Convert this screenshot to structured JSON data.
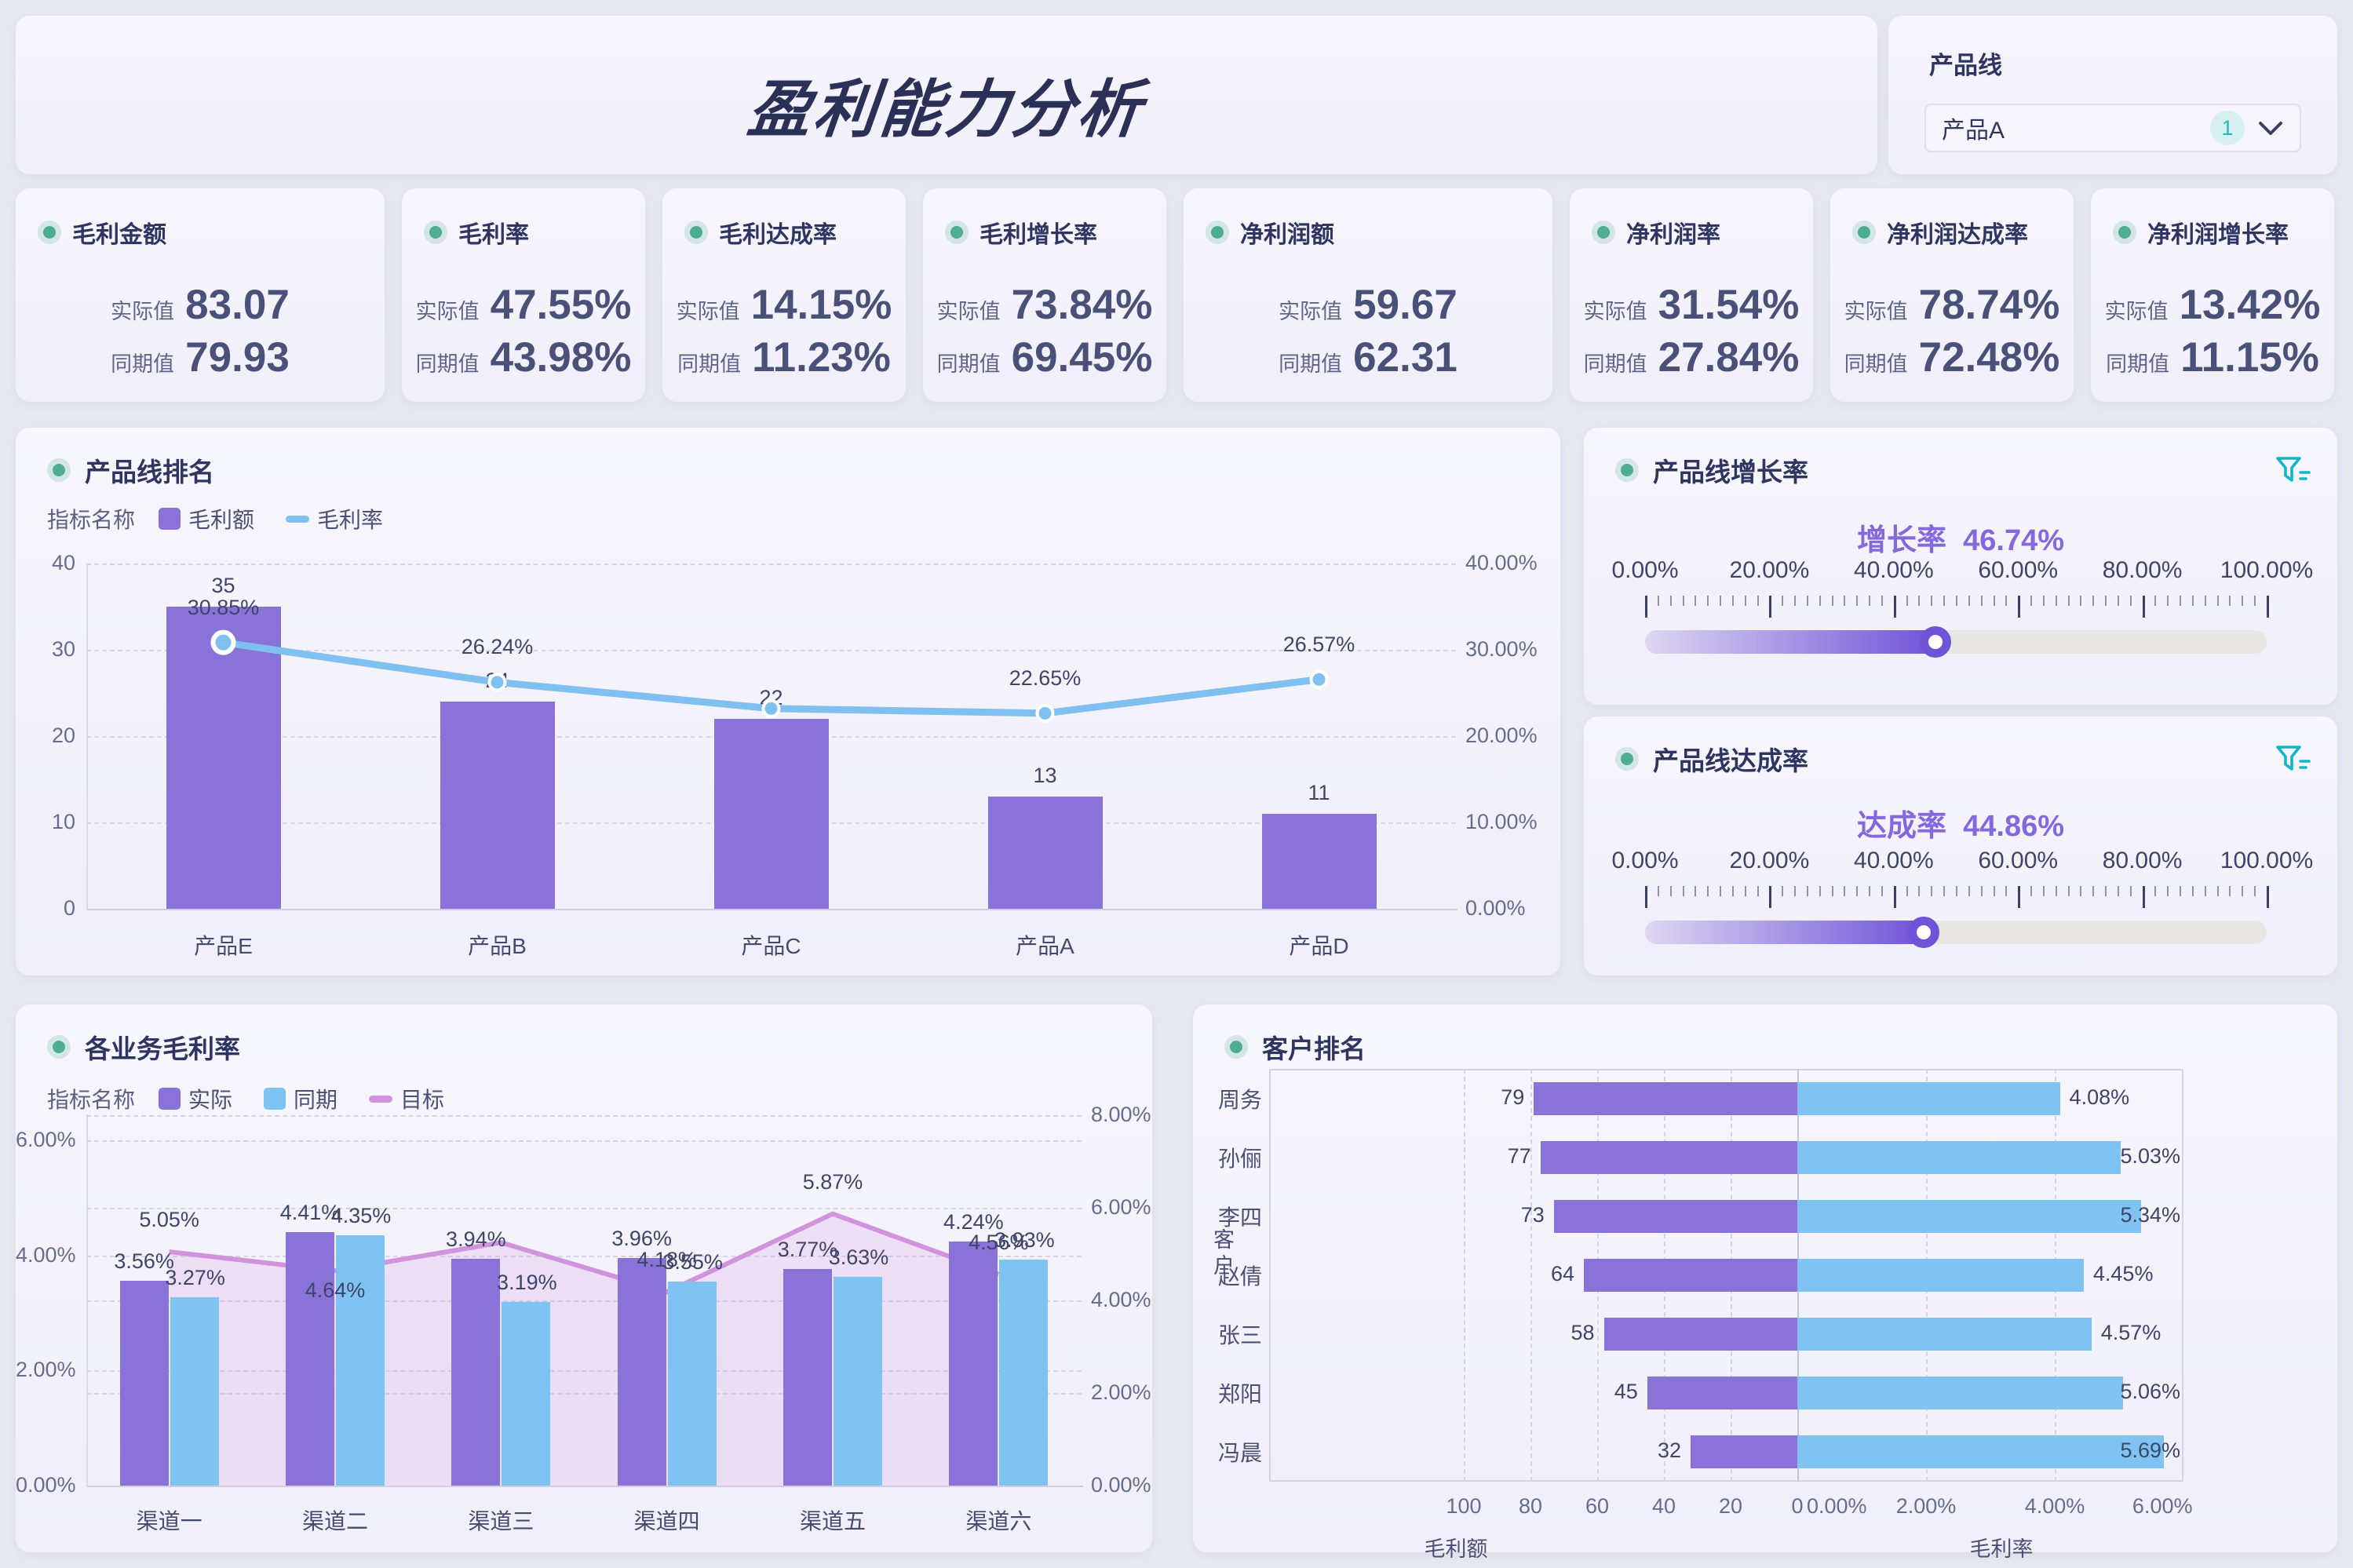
{
  "header": {
    "title": "盈利能力分析",
    "selector_label": "产品线",
    "selector_value": "产品A",
    "selector_badge": "1"
  },
  "kpi_labels": {
    "actual": "实际值",
    "previous": "同期值"
  },
  "kpi_cards": [
    {
      "title": "毛利金额",
      "actual": "83.07",
      "previous": "79.93"
    },
    {
      "title": "毛利率",
      "actual": "47.55%",
      "previous": "43.98%"
    },
    {
      "title": "毛利达成率",
      "actual": "14.15%",
      "previous": "11.23%"
    },
    {
      "title": "毛利增长率",
      "actual": "73.84%",
      "previous": "69.45%"
    },
    {
      "title": "净利润额",
      "actual": "59.67",
      "previous": "62.31"
    },
    {
      "title": "净利润率",
      "actual": "31.54%",
      "previous": "27.84%"
    },
    {
      "title": "净利润达成率",
      "actual": "78.74%",
      "previous": "72.48%"
    },
    {
      "title": "净利润增长率",
      "actual": "13.42%",
      "previous": "11.15%"
    }
  ],
  "sliders": [
    {
      "title": "产品线增长率",
      "label": "增长率",
      "value": "46.74%",
      "percent": 46.74,
      "tick_labels": [
        "0.00%",
        "20.00%",
        "40.00%",
        "60.00%",
        "80.00%",
        "100.00%"
      ]
    },
    {
      "title": "产品线达成率",
      "label": "达成率",
      "value": "44.86%",
      "percent": 44.86,
      "tick_labels": [
        "0.00%",
        "20.00%",
        "40.00%",
        "60.00%",
        "80.00%",
        "100.00%"
      ]
    }
  ],
  "colors": {
    "purple": "#8a73d8",
    "blue": "#7fc3f3",
    "line_blue": "#7fc0f0",
    "pink": "#d193dc",
    "teal": "#13b5c8",
    "navy": "#2e3561",
    "area_pink": "rgba(209,147,220,0.20)"
  },
  "chart_data": [
    {
      "id": "product_ranking",
      "type": "bar",
      "title": "产品线排名",
      "legend_title": "指标名称",
      "legend": [
        {
          "label": "毛利额",
          "type": "bar"
        },
        {
          "label": "毛利率",
          "type": "line"
        }
      ],
      "categories": [
        "产品E",
        "产品B",
        "产品C",
        "产品A",
        "产品D"
      ],
      "bar_values": [
        35,
        24,
        22,
        13,
        11
      ],
      "bar_labels": [
        "35",
        "24",
        "22",
        "13",
        "11"
      ],
      "line_values": [
        30.85,
        26.24,
        23.2,
        22.65,
        26.57
      ],
      "line_labels": [
        "30.85%",
        "26.24%",
        "",
        "22.65%",
        "26.57%"
      ],
      "left_axis": {
        "min": 0,
        "max": 40,
        "ticks": [
          "40",
          "30",
          "20",
          "10",
          "0"
        ]
      },
      "right_axis": {
        "min": 0,
        "max": 40,
        "ticks": [
          "40.00%",
          "30.00%",
          "20.00%",
          "10.00%",
          "0.00%"
        ]
      },
      "grid": true,
      "legend_position": "top-left"
    },
    {
      "id": "business_margin",
      "type": "bar",
      "title": "各业务毛利率",
      "legend_title": "指标名称",
      "legend": [
        {
          "label": "实际",
          "type": "bar"
        },
        {
          "label": "同期",
          "type": "bar"
        },
        {
          "label": "目标",
          "type": "line"
        }
      ],
      "categories": [
        "渠道一",
        "渠道二",
        "渠道三",
        "渠道四",
        "渠道五",
        "渠道六"
      ],
      "series": [
        {
          "name": "实际",
          "values": [
            3.56,
            4.41,
            3.94,
            3.96,
            3.77,
            4.24
          ],
          "labels": [
            "3.56%",
            "4.41%",
            "3.94%",
            "3.96%",
            "3.77%",
            "4.24%"
          ]
        },
        {
          "name": "同期",
          "values": [
            3.27,
            4.35,
            3.19,
            3.55,
            3.63,
            3.93
          ],
          "labels": [
            "3.27%",
            "4.35%",
            "3.19%",
            "3.55%",
            "3.63%",
            "3.93%"
          ]
        },
        {
          "name": "目标",
          "values": [
            5.05,
            4.64,
            5.25,
            4.18,
            5.87,
            4.56
          ],
          "labels": [
            "5.05%",
            "4.64%",
            "",
            "4.18%",
            "5.87%",
            "4.56%"
          ],
          "label_side": [
            "above",
            "below",
            "none",
            "above",
            "above",
            "above"
          ]
        }
      ],
      "left_axis": {
        "min": 0,
        "max": 6,
        "ticks": [
          "6.00%",
          "4.00%",
          "2.00%",
          "0.00%"
        ]
      },
      "right_axis": {
        "min": 0,
        "max": 8,
        "ticks": [
          "8.00%",
          "6.00%",
          "4.00%",
          "2.00%",
          "0.00%"
        ]
      },
      "grid": true,
      "legend_position": "top-left"
    },
    {
      "id": "customer_ranking",
      "type": "bar",
      "title": "客户排名",
      "y_axis_title": "客户",
      "categories": [
        "周务",
        "孙俪",
        "李四",
        "赵倩",
        "张三",
        "郑阳",
        "冯晨"
      ],
      "series": [
        {
          "name": "毛利额",
          "values": [
            79,
            77,
            73,
            64,
            58,
            45,
            32
          ],
          "labels": [
            "79",
            "77",
            "73",
            "64",
            "58",
            "45",
            "32"
          ],
          "axis": {
            "min": 0,
            "max": 100,
            "reversed": true,
            "ticks": [
              "100",
              "80",
              "60",
              "40",
              "20",
              "0"
            ],
            "title": "毛利额"
          }
        },
        {
          "name": "毛利率",
          "values": [
            4.08,
            5.03,
            5.34,
            4.45,
            4.57,
            5.06,
            5.69
          ],
          "labels": [
            "4.08%",
            "5.03%",
            "5.34%",
            "4.45%",
            "4.57%",
            "5.06%",
            "5.69%"
          ],
          "axis": {
            "min": 0,
            "max": 6,
            "ticks": [
              "0.00%",
              "2.00%",
              "4.00%",
              "6.00%"
            ],
            "title": "毛利率"
          }
        }
      ],
      "grid": true
    }
  ]
}
